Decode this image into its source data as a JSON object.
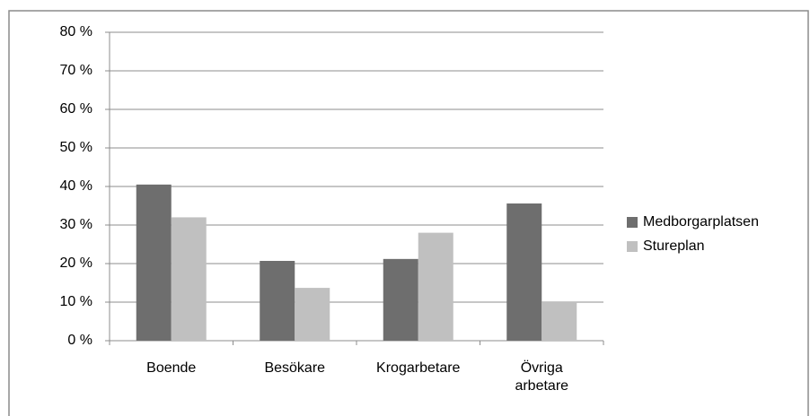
{
  "chart_data": {
    "type": "bar",
    "categories": [
      "Boende",
      "Besökare",
      "Krogarbetare",
      "Övriga arbetare"
    ],
    "series": [
      {
        "name": "Medborgarplatsen",
        "color": "#6e6e6e",
        "values": [
          40.5,
          20.7,
          21.2,
          35.6
        ]
      },
      {
        "name": "Stureplan",
        "color": "#c0c0c0",
        "values": [
          32,
          13.7,
          28,
          10.2
        ]
      }
    ],
    "ylim": [
      0,
      80
    ],
    "yticks": [
      {
        "value": 0,
        "label": "0 %"
      },
      {
        "value": 10,
        "label": "10 %"
      },
      {
        "value": 20,
        "label": "20 %"
      },
      {
        "value": 30,
        "label": "30 %"
      },
      {
        "value": 40,
        "label": "40 %"
      },
      {
        "value": 50,
        "label": "50 %"
      },
      {
        "value": 60,
        "label": "60 %"
      },
      {
        "value": 70,
        "label": "70 %"
      },
      {
        "value": 80,
        "label": "80 %"
      }
    ],
    "grid": true,
    "legend": "right"
  }
}
